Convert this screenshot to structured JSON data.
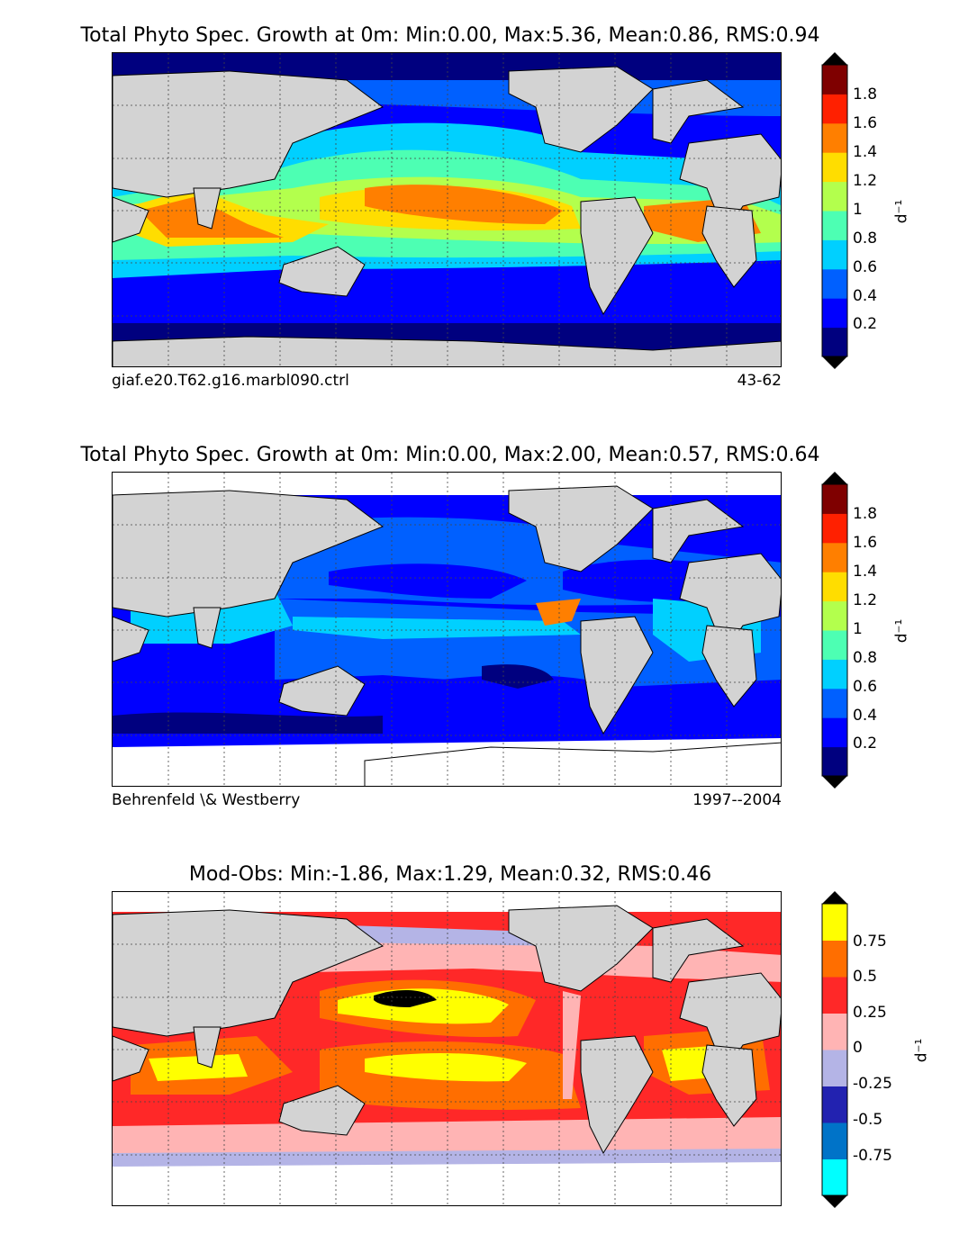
{
  "panels": [
    {
      "title": "Total Phyto Spec. Growth at 0m: Min:0.00, Max:5.36, Mean:0.86, RMS:0.94",
      "footer_left": "giaf.e20.T62.g16.marbl090.ctrl",
      "footer_right": "43-62",
      "colorbar": {
        "unit": "d$^{-1}$",
        "unit_display": "d⁻¹",
        "ticks": [
          "0.2",
          "0.4",
          "0.6",
          "0.8",
          "1",
          "1.2",
          "1.4",
          "1.6",
          "1.8"
        ],
        "colors": [
          "#00007f",
          "#0000ff",
          "#0060ff",
          "#00d0ff",
          "#4dffb3",
          "#b3ff4d",
          "#ffdd00",
          "#ff7f00",
          "#ff2000",
          "#7f0000"
        ]
      }
    },
    {
      "title": "Total Phyto Spec. Growth at 0m: Min:0.00, Max:2.00, Mean:0.57, RMS:0.64",
      "footer_left": "Behrenfeld \\& Westberry",
      "footer_right": "1997--2004",
      "colorbar": {
        "unit": "d$^{-1}$",
        "unit_display": "d⁻¹",
        "ticks": [
          "0.2",
          "0.4",
          "0.6",
          "0.8",
          "1",
          "1.2",
          "1.4",
          "1.6",
          "1.8"
        ],
        "colors": [
          "#00007f",
          "#0000ff",
          "#0060ff",
          "#00d0ff",
          "#4dffb3",
          "#b3ff4d",
          "#ffdd00",
          "#ff7f00",
          "#ff2000",
          "#7f0000"
        ]
      }
    },
    {
      "title": "Mod-Obs: Min:-1.86, Max:1.29, Mean:0.32, RMS:0.46",
      "footer_left": "",
      "footer_right": "",
      "colorbar": {
        "unit": "d$^{-1}$",
        "unit_display": "d⁻¹",
        "ticks": [
          "-0.75",
          "-0.5",
          "-0.25",
          "0",
          "0.25",
          "0.5",
          "0.75"
        ],
        "colors": [
          "#00ffff",
          "#0073c8",
          "#2222b0",
          "#b4b4e6",
          "#ffb4b4",
          "#ff2828",
          "#ff6e00",
          "#ffff00"
        ]
      }
    }
  ],
  "land_color": "#d3d3d3"
}
